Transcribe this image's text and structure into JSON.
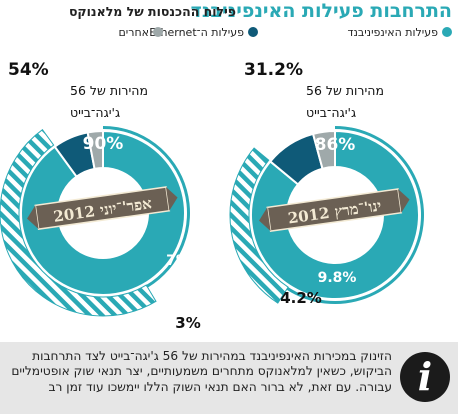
{
  "header": {
    "title": "התרחבות פעילות האינפיניבנד",
    "subtitle": "פילוח ההכנסות של מלאנוקס"
  },
  "footer": {
    "text": "הזינוק במכירות האינפיניבנד במהירות של 56 ג'יגה־בייט לצד התרחבות הביקוש, כשאין למלאנוקס מתחרים משמעותיים, יצר תנאי שוק אופטימליים עבורה. עם זאת, לא ברור האם תנאי השוק הללו יימשכו עוד זמן רב",
    "icon": "info-icon"
  },
  "colors": {
    "infiniband": "#2aa9b5",
    "ethernet": "#0f5a78",
    "other": "#9fa9aa",
    "banner_bg": "#6b6054",
    "banner_text": "#f3ead4",
    "accent_text": "#2aa9b5"
  },
  "chart_data": [
    {
      "type": "pie",
      "style": "donut",
      "period": "ינו'־מרץ 2012",
      "categories": [
        "פעילות האינפיניבנד",
        "פעילות ה־Ethernet",
        "אחרים"
      ],
      "values": [
        86,
        9.8,
        4.2
      ],
      "labels": [
        "86%",
        "9.8%",
        "4.2%"
      ],
      "breakout": {
        "value": "31.2%",
        "text": "מהירות של 56 ג'יגה־בייט",
        "fraction_of_infiniband": 0.312,
        "style": "hatched-outer-ring"
      }
    },
    {
      "type": "pie",
      "style": "donut",
      "period": "אפר'־יוני 2012",
      "categories": [
        "פעילות האינפיניבנד",
        "פעילות ה־Ethernet",
        "אחרים"
      ],
      "values": [
        90,
        7,
        3
      ],
      "labels": [
        "90%",
        "7%",
        "3%"
      ],
      "breakout": {
        "value": "54%",
        "text": "מהירות של 56 ג'יגה־בייט",
        "fraction_of_infiniband": 0.54,
        "style": "hatched-outer-ring"
      }
    }
  ],
  "legend": [
    {
      "label": "פעילות האינפיניבנד",
      "color": "#2aa9b5"
    },
    {
      "label": "פעילות ה־Ethernet",
      "color": "#0f5a78"
    },
    {
      "label": "אחרים",
      "color": "#9fa9aa"
    }
  ]
}
